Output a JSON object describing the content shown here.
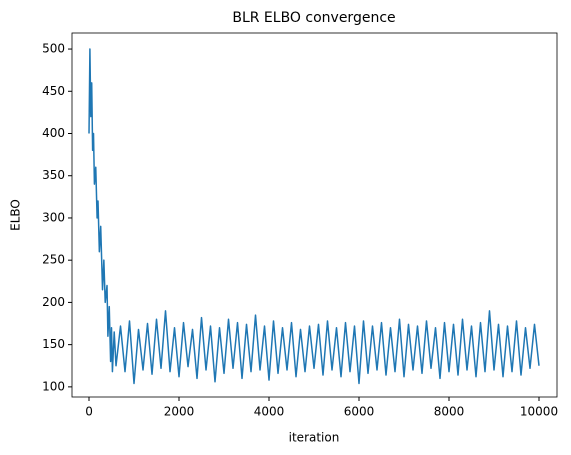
{
  "chart_data": {
    "type": "line",
    "title": "BLR ELBO convergence",
    "x_label": "iteration",
    "y_label": "ELBO",
    "color": "#1f77b4",
    "x": [
      0,
      20,
      40,
      60,
      80,
      100,
      120,
      150,
      180,
      200,
      230,
      260,
      300,
      330,
      360,
      400,
      420,
      450,
      480,
      500,
      520,
      560,
      600,
      700,
      800,
      900,
      1000,
      1100,
      1200,
      1300,
      1400,
      1500,
      1600,
      1700,
      1800,
      1900,
      2000,
      2100,
      2200,
      2300,
      2400,
      2500,
      2600,
      2700,
      2800,
      2900,
      3000,
      3100,
      3200,
      3300,
      3400,
      3500,
      3600,
      3700,
      3800,
      3900,
      4000,
      4100,
      4200,
      4300,
      4400,
      4500,
      4600,
      4700,
      4800,
      4900,
      5000,
      5100,
      5200,
      5300,
      5400,
      5500,
      5600,
      5700,
      5800,
      5900,
      6000,
      6100,
      6200,
      6300,
      6400,
      6500,
      6600,
      6700,
      6800,
      6900,
      7000,
      7100,
      7200,
      7300,
      7400,
      7500,
      7600,
      7700,
      7800,
      7900,
      8000,
      8100,
      8200,
      8300,
      8400,
      8500,
      8600,
      8700,
      8800,
      8900,
      9000,
      9100,
      9200,
      9300,
      9400,
      9500,
      9600,
      9700,
      9800,
      9900,
      10000
    ],
    "values": [
      400,
      500,
      420,
      460,
      380,
      400,
      340,
      360,
      300,
      320,
      260,
      290,
      215,
      250,
      200,
      220,
      160,
      195,
      130,
      170,
      118,
      165,
      125,
      172,
      118,
      178,
      104,
      168,
      120,
      175,
      115,
      180,
      122,
      190,
      118,
      170,
      112,
      176,
      124,
      168,
      110,
      182,
      120,
      172,
      106,
      170,
      116,
      180,
      122,
      176,
      110,
      174,
      118,
      185,
      120,
      172,
      108,
      178,
      116,
      170,
      120,
      176,
      112,
      168,
      118,
      172,
      122,
      174,
      114,
      178,
      120,
      170,
      112,
      176,
      118,
      172,
      104,
      178,
      116,
      172,
      120,
      176,
      114,
      170,
      118,
      180,
      112,
      174,
      120,
      172,
      116,
      178,
      122,
      170,
      110,
      176,
      118,
      174,
      114,
      180,
      120,
      172,
      112,
      176,
      118,
      190,
      120,
      174,
      112,
      172,
      118,
      178,
      114,
      170,
      122,
      174,
      125
    ],
    "xlim": [
      -378,
      10400
    ],
    "ylim": [
      88,
      519
    ],
    "xticks": [
      0,
      2000,
      4000,
      6000,
      8000,
      10000
    ],
    "yticks": [
      100,
      150,
      200,
      250,
      300,
      350,
      400,
      450,
      500
    ]
  }
}
